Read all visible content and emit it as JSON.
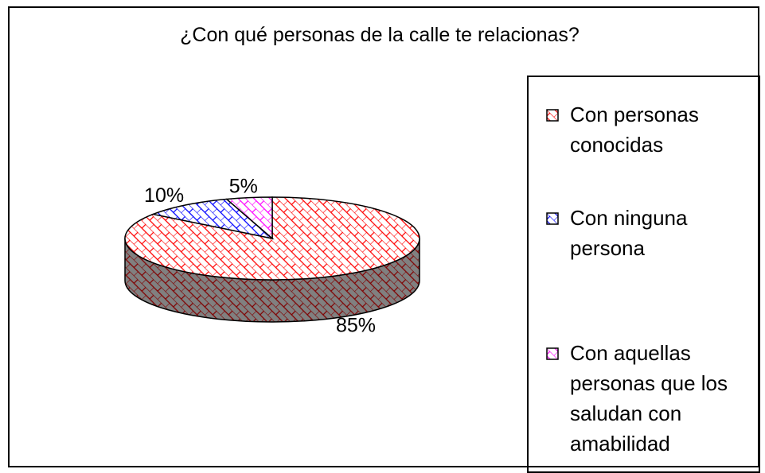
{
  "chart_data": {
    "type": "pie",
    "title": "¿Con qué personas de la calle te relacionas?",
    "categories": [
      "Con personas conocidas",
      "Con ninguna persona",
      "Con aquellas personas que los saludan con amabilidad"
    ],
    "values": [
      85,
      10,
      5
    ],
    "value_labels": [
      "85%",
      "10%",
      "5%"
    ],
    "colors": [
      "#ff0000",
      "#0000ff",
      "#ff00ff"
    ],
    "legend": "right"
  }
}
